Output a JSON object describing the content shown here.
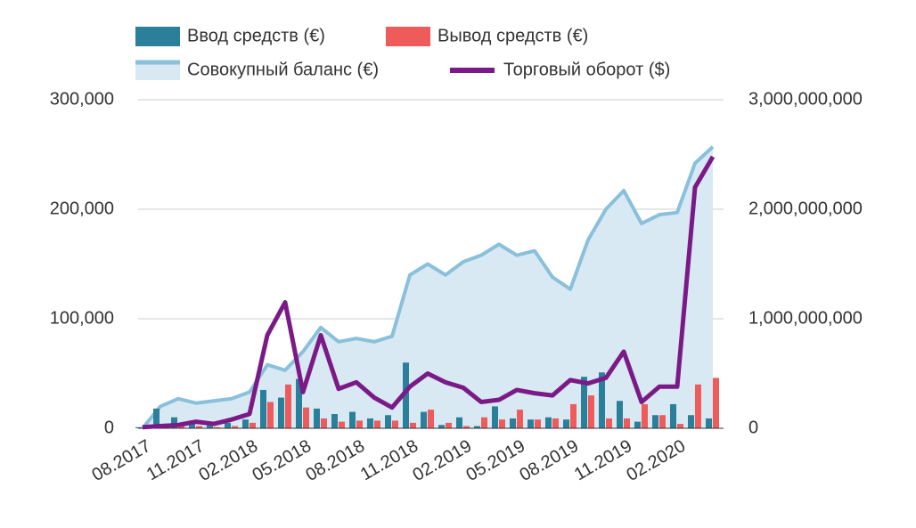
{
  "chart_data": {
    "type": "combo",
    "categories": [
      "08.2017",
      null,
      null,
      "11.2017",
      null,
      null,
      "02.2018",
      null,
      null,
      "05.2018",
      null,
      null,
      "08.2018",
      null,
      null,
      "11.2018",
      null,
      null,
      "02.2019",
      null,
      null,
      "05.2019",
      null,
      null,
      "08.2019",
      null,
      null,
      "11.2019",
      null,
      null,
      "02.2020",
      null,
      null
    ],
    "series": [
      {
        "name": "Совокупный баланс (€)",
        "type": "area",
        "color": "#89c0db",
        "fill": "#d8e9f3",
        "values": [
          0,
          20000,
          27000,
          23000,
          25000,
          27000,
          33000,
          58000,
          53000,
          70000,
          92000,
          79000,
          82000,
          79000,
          84000,
          140000,
          150000,
          140000,
          152000,
          158000,
          168000,
          158000,
          162000,
          138000,
          127000,
          172000,
          200000,
          217000,
          187000,
          195000,
          197000,
          242000,
          257000
        ]
      },
      {
        "name": "Ввод средств (€)",
        "type": "bar",
        "color": "#2a7f9a",
        "values": [
          1000,
          18000,
          10000,
          7000,
          6000,
          5000,
          8000,
          35000,
          28000,
          45000,
          18000,
          13000,
          15000,
          9000,
          12000,
          60000,
          15000,
          3000,
          10000,
          2000,
          20000,
          9000,
          8000,
          10000,
          8000,
          47000,
          51000,
          25000,
          6000,
          12000,
          22000,
          12000,
          9000
        ]
      },
      {
        "name": "Вывод средств (€)",
        "type": "bar",
        "color": "#ef5a5a",
        "values": [
          0,
          0,
          3000,
          2000,
          1000,
          2000,
          5000,
          24000,
          40000,
          19000,
          9000,
          6000,
          7000,
          7000,
          7000,
          5000,
          17000,
          5000,
          2000,
          10000,
          8000,
          17000,
          8000,
          9000,
          22000,
          30000,
          9000,
          9000,
          22000,
          12000,
          4000,
          40000,
          46000
        ]
      },
      {
        "name": "Торговый оборот ($)",
        "type": "line",
        "axis": "y2",
        "color": "#7b1a87",
        "values": [
          10000000,
          20000000,
          30000000,
          60000000,
          40000000,
          80000000,
          130000000,
          850000000,
          1150000000,
          330000000,
          850000000,
          360000000,
          420000000,
          280000000,
          190000000,
          380000000,
          500000000,
          420000000,
          370000000,
          240000000,
          260000000,
          350000000,
          320000000,
          300000000,
          440000000,
          410000000,
          460000000,
          700000000,
          240000000,
          380000000,
          380000000,
          2200000000,
          2480000000
        ]
      }
    ],
    "ylim": [
      0,
      300000
    ],
    "yticks": [
      0,
      {
        "value": 100000,
        "label": "100,000"
      },
      {
        "value": 200000,
        "label": "200,000"
      },
      {
        "value": 300000,
        "label": "300,000"
      }
    ],
    "y2lim": [
      0,
      3000000000
    ],
    "y2ticks": [
      0,
      {
        "value": 1000000000,
        "label": "1,000,000,000"
      },
      {
        "value": 2000000000,
        "label": "2,000,000,000"
      },
      {
        "value": 3000000000,
        "label": "3,000,000,000"
      }
    ],
    "grid": true
  }
}
